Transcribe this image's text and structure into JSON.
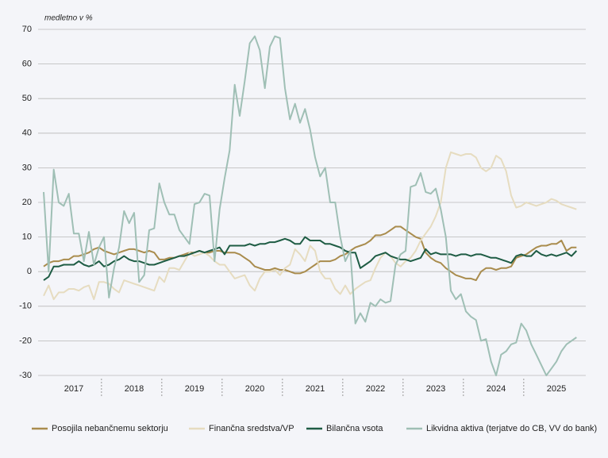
{
  "chart_data": {
    "type": "line",
    "y_axis_label": "medletno v %",
    "categories": [
      null,
      null,
      null,
      null,
      null,
      null,
      "2017",
      null,
      null,
      null,
      null,
      null,
      null,
      null,
      null,
      null,
      null,
      null,
      "2018",
      null,
      null,
      null,
      null,
      null,
      null,
      null,
      null,
      null,
      null,
      null,
      "2019",
      null,
      null,
      null,
      null,
      null,
      null,
      null,
      null,
      null,
      null,
      null,
      "2020",
      null,
      null,
      null,
      null,
      null,
      null,
      null,
      null,
      null,
      null,
      null,
      "2021",
      null,
      null,
      null,
      null,
      null,
      null,
      null,
      null,
      null,
      null,
      null,
      "2022",
      null,
      null,
      null,
      null,
      null,
      null,
      null,
      null,
      null,
      null,
      null,
      "2023",
      null,
      null,
      null,
      null,
      null,
      null,
      null,
      null,
      null,
      null,
      null,
      "2024",
      null,
      null,
      null,
      null,
      null,
      null,
      null,
      null,
      null,
      null,
      null,
      "2025",
      null,
      null,
      null,
      null
    ],
    "series": [
      {
        "name": "Posojila nebančnemu sektorju",
        "color": "#a98c4d",
        "values": [
          1.5,
          2.5,
          3,
          3,
          3.5,
          3.5,
          4.5,
          4.5,
          5,
          5.5,
          6.5,
          7,
          6,
          5.5,
          5,
          5.5,
          6,
          6.5,
          6.5,
          6,
          5.5,
          6,
          5.5,
          3.5,
          3.5,
          4,
          4,
          4.5,
          5,
          5.5,
          5.5,
          6,
          5.5,
          5.5,
          6,
          6,
          5.5,
          5.5,
          5.5,
          5,
          4,
          3,
          1.5,
          1,
          0.5,
          0.5,
          1,
          0.5,
          0.5,
          0,
          -0.5,
          -0.5,
          0,
          1,
          2,
          3,
          3,
          3,
          3.5,
          4.5,
          5,
          6,
          7,
          7.5,
          8,
          9,
          10.5,
          10.5,
          11,
          12,
          13,
          13,
          12,
          11,
          10,
          9.5,
          5.5,
          4,
          3,
          2.5,
          1,
          0,
          -1,
          -1.5,
          -2,
          -2,
          -2.5,
          0,
          1,
          1,
          0.5,
          1,
          1,
          1.5,
          4,
          4.5,
          5,
          6,
          7,
          7.5,
          7.5,
          8,
          8,
          9,
          6,
          7,
          7
        ]
      },
      {
        "name": "Finančna sredstva/VP",
        "color": "#e6dcc0",
        "values": [
          -7,
          -4,
          -8,
          -6,
          -6,
          -5,
          -5,
          -5.5,
          -4.5,
          -4,
          -8,
          -3,
          -3,
          -3.5,
          -5,
          -6,
          -2.5,
          -3,
          -3.5,
          -4,
          -4.5,
          -5,
          -5.5,
          -1.5,
          -3,
          1,
          1,
          0.5,
          3,
          5.5,
          4.5,
          5,
          5.5,
          4.5,
          3,
          2,
          2,
          0,
          -2,
          -1.5,
          -1,
          -4,
          -5.5,
          -2,
          0,
          0,
          0.5,
          -1,
          1,
          2,
          6.5,
          5,
          3,
          7.5,
          6,
          0,
          -2,
          -2,
          -5,
          -6.5,
          -4,
          -6.5,
          -5,
          -4,
          -3,
          -2.5,
          1,
          4,
          5.5,
          4.5,
          2.5,
          1.5,
          3,
          4,
          6,
          9,
          11,
          13,
          16,
          20,
          30,
          34.5,
          34,
          33.5,
          34,
          34,
          33,
          30,
          29,
          30,
          33.5,
          32.5,
          29,
          22,
          18.5,
          19,
          20,
          19.5,
          19,
          19.5,
          20,
          21,
          20.5,
          19.5,
          19,
          18.5,
          18
        ]
      },
      {
        "name": "Bilančna vsota",
        "color": "#1e5c44",
        "values": [
          -2.5,
          -1.5,
          1.5,
          1.5,
          2,
          2,
          2,
          3,
          2,
          1.5,
          2,
          3,
          1.5,
          2,
          3,
          3.5,
          4.5,
          3.5,
          3,
          3,
          2.5,
          2,
          2,
          2.5,
          3,
          3.5,
          4,
          4.5,
          4.5,
          5,
          5.5,
          6,
          5.5,
          6,
          6.5,
          7,
          5,
          7.5,
          7.5,
          7.5,
          7.5,
          8,
          7.5,
          8,
          8,
          8.5,
          8.5,
          9,
          9.5,
          9,
          8,
          8,
          10,
          9,
          9,
          9,
          8,
          8,
          7.5,
          7,
          6,
          5.5,
          5.5,
          1,
          2,
          3,
          4.5,
          5,
          5.5,
          4.5,
          4,
          3.5,
          3.5,
          3,
          3.5,
          4,
          6.5,
          5,
          5.5,
          5,
          5,
          5,
          4.5,
          5,
          5,
          4.5,
          5,
          5,
          4.5,
          4,
          4,
          3.5,
          3,
          2.5,
          4.5,
          5,
          4.5,
          4.5,
          6,
          5,
          4.5,
          5,
          4.5,
          5,
          5.5,
          4.5,
          6
        ]
      },
      {
        "name": "Likvidna aktiva (terjatve do CB, VV do bank)",
        "color": "#9fbfb5",
        "values": [
          23,
          0,
          29.5,
          20,
          19,
          22.5,
          11,
          11,
          3,
          11.5,
          2,
          7,
          10,
          -7.5,
          1,
          7,
          17.5,
          14,
          17,
          -3,
          -1,
          12,
          12.5,
          25.5,
          20,
          16.5,
          16.5,
          12,
          10,
          8,
          19.5,
          20,
          22.5,
          22,
          3,
          18,
          27,
          35,
          54,
          45,
          55,
          66,
          68,
          64,
          53,
          65,
          68,
          67.5,
          53,
          44,
          48.5,
          43,
          47,
          41,
          33,
          27.5,
          30,
          20,
          20,
          10,
          3,
          6,
          -15,
          -12,
          -14.5,
          -9,
          -10,
          -8,
          -9,
          -8.5,
          2,
          5,
          6,
          24.5,
          25,
          28.5,
          23,
          22.5,
          24,
          18,
          10,
          -5.5,
          -8,
          -6.5,
          -11.5,
          -13,
          -14,
          -20,
          -19.5,
          -26,
          -30,
          -24,
          -23,
          -21,
          -20.5,
          -15,
          -17,
          -21,
          -24,
          -27,
          -30,
          -28,
          -26,
          -23,
          -21,
          -20,
          -19
        ]
      }
    ],
    "ylim": [
      -30,
      70
    ],
    "yticks": [
      -30,
      -20,
      -10,
      0,
      10,
      20,
      30,
      40,
      50,
      60,
      70
    ],
    "grid": true,
    "legend": "bottom"
  }
}
